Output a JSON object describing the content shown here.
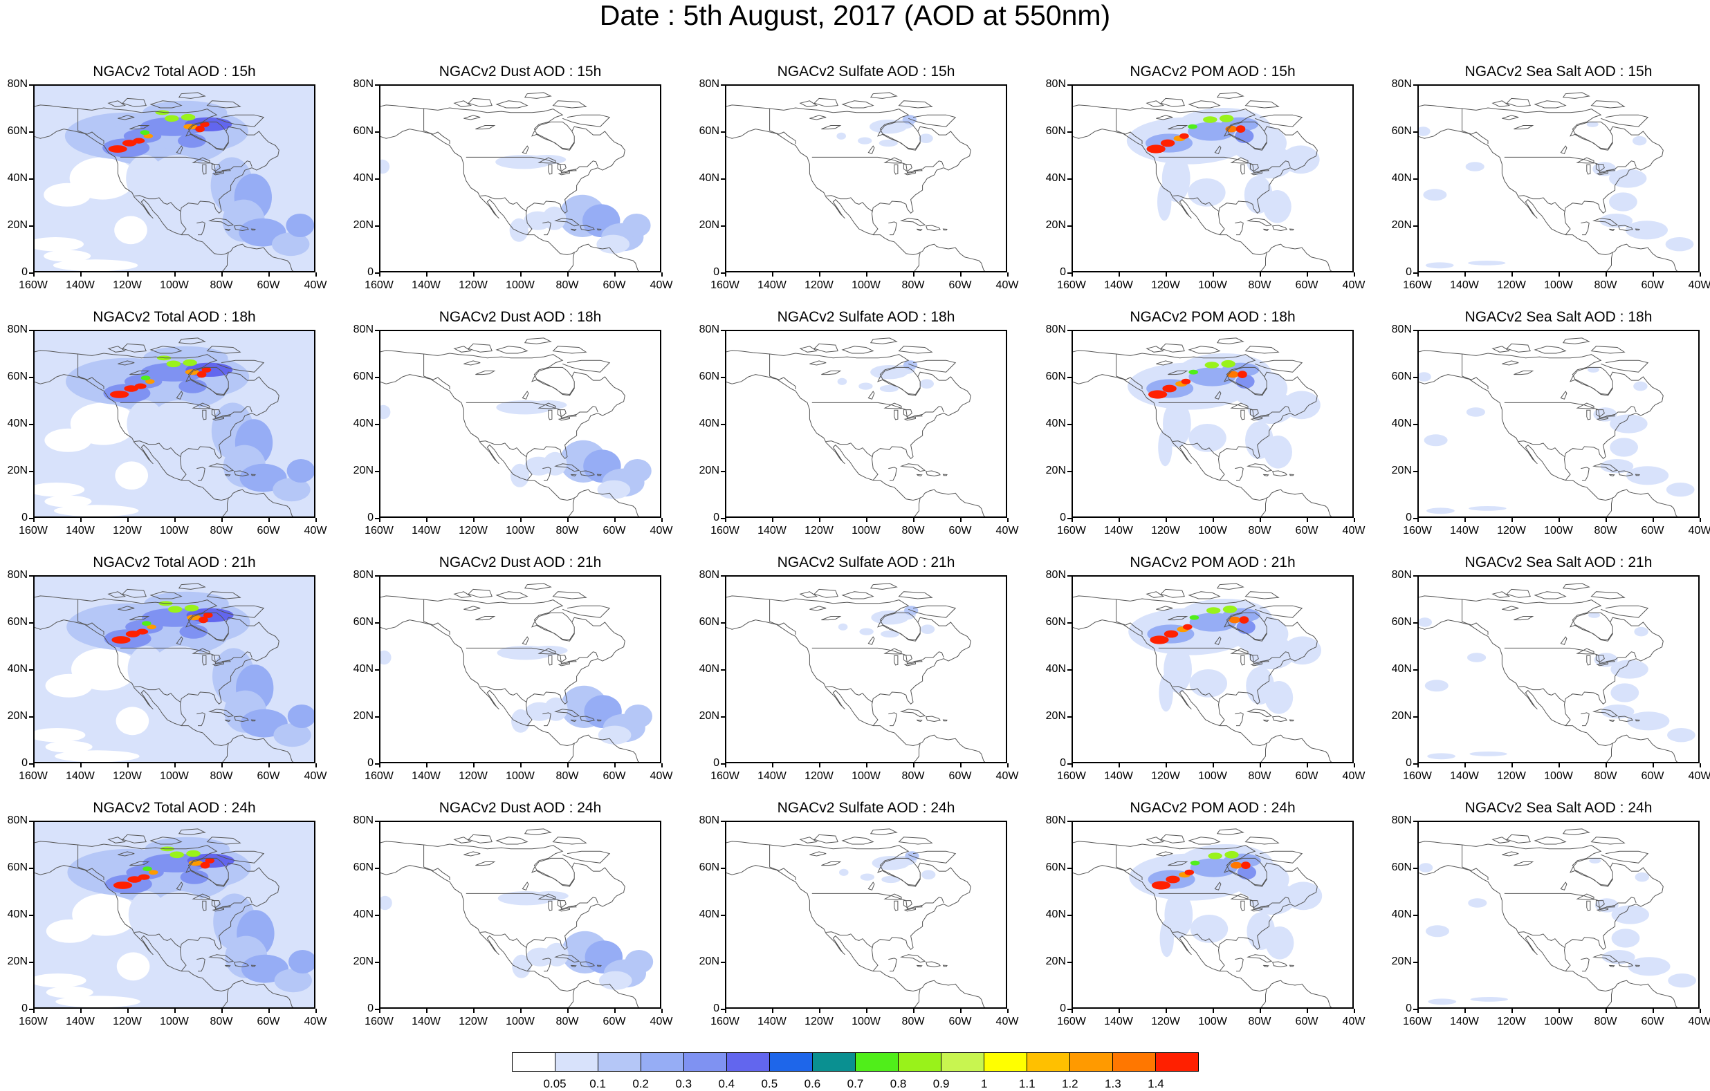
{
  "title": "Date : 5th August, 2017 (AOD at 550nm)",
  "lat_labels": [
    "80N",
    "60N",
    "40N",
    "20N",
    "0"
  ],
  "lon_labels": [
    "160W",
    "140W",
    "120W",
    "100W",
    "80W",
    "60W",
    "40W"
  ],
  "rows": [
    {
      "hour": "15h",
      "titles": [
        "NGACv2 Total AOD : 15h",
        "NGACv2 Dust AOD : 15h",
        "NGACv2 Sulfate AOD : 15h",
        "NGACv2 POM AOD : 15h",
        "NGACv2 Sea Salt AOD : 15h"
      ]
    },
    {
      "hour": "18h",
      "titles": [
        "NGACv2 Total AOD : 18h",
        "NGACv2 Dust AOD : 18h",
        "NGACv2 Sulfate AOD : 18h",
        "NGACv2 POM AOD : 18h",
        "NGACv2 Sea Salt AOD : 18h"
      ]
    },
    {
      "hour": "21h",
      "titles": [
        "NGACv2 Total AOD : 21h",
        "NGACv2 Dust AOD : 21h",
        "NGACv2 Sulfate AOD : 21h",
        "NGACv2 POM AOD : 21h",
        "NGACv2 Sea Salt AOD : 21h"
      ]
    },
    {
      "hour": "24h",
      "titles": [
        "NGACv2 Total AOD : 24h",
        "NGACv2 Dust AOD : 24h",
        "NGACv2 Sulfate AOD : 24h",
        "NGACv2 POM AOD : 24h",
        "NGACv2 Sea Salt  AOD : 24h"
      ]
    }
  ],
  "colorbar": {
    "labels": [
      "0.05",
      "0.1",
      "0.2",
      "0.3",
      "0.4",
      "0.5",
      "0.6",
      "0.7",
      "0.8",
      "0.9",
      "1",
      "1.1",
      "1.2",
      "1.3",
      "1.4"
    ],
    "colors": [
      "#ffffff",
      "#d8e2fb",
      "#b5c7f7",
      "#96adf5",
      "#7f92f2",
      "#6266ee",
      "#1e66ea",
      "#0a9091",
      "#50ee1a",
      "#99f21a",
      "#c8f550",
      "#ffff00",
      "#ffc000",
      "#ff9a00",
      "#ff7700",
      "#ff2000"
    ]
  },
  "colors": {
    "land_line": "#555555"
  }
}
